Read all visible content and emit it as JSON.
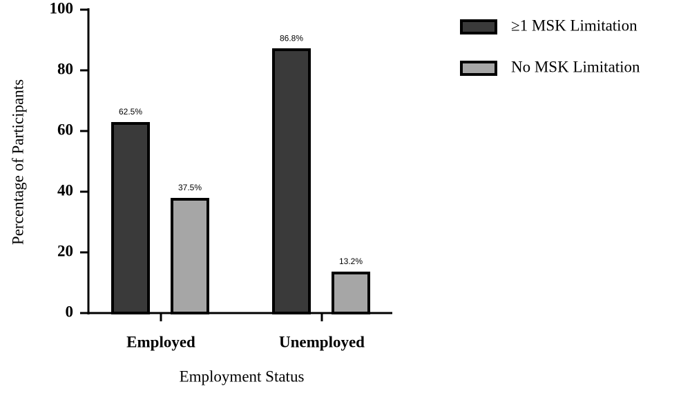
{
  "chart_data": {
    "type": "bar",
    "xlabel": "Employment Status",
    "ylabel": "Percentage of Participants",
    "categories": [
      "Employed",
      "Unemployed"
    ],
    "series": [
      {
        "name": "≥1 MSK Limitation",
        "color": "#3a3a3a",
        "values": [
          62.5,
          86.8
        ],
        "value_labels": [
          "62.5%",
          "86.8%"
        ]
      },
      {
        "name": "No MSK Limitation",
        "color": "#a6a6a6",
        "values": [
          37.5,
          13.2
        ],
        "value_labels": [
          "37.5%",
          "13.2%"
        ]
      }
    ],
    "ylim": [
      0,
      100
    ],
    "yticks": [
      0,
      20,
      40,
      60,
      80,
      100
    ],
    "grid": false,
    "legend": "right"
  }
}
